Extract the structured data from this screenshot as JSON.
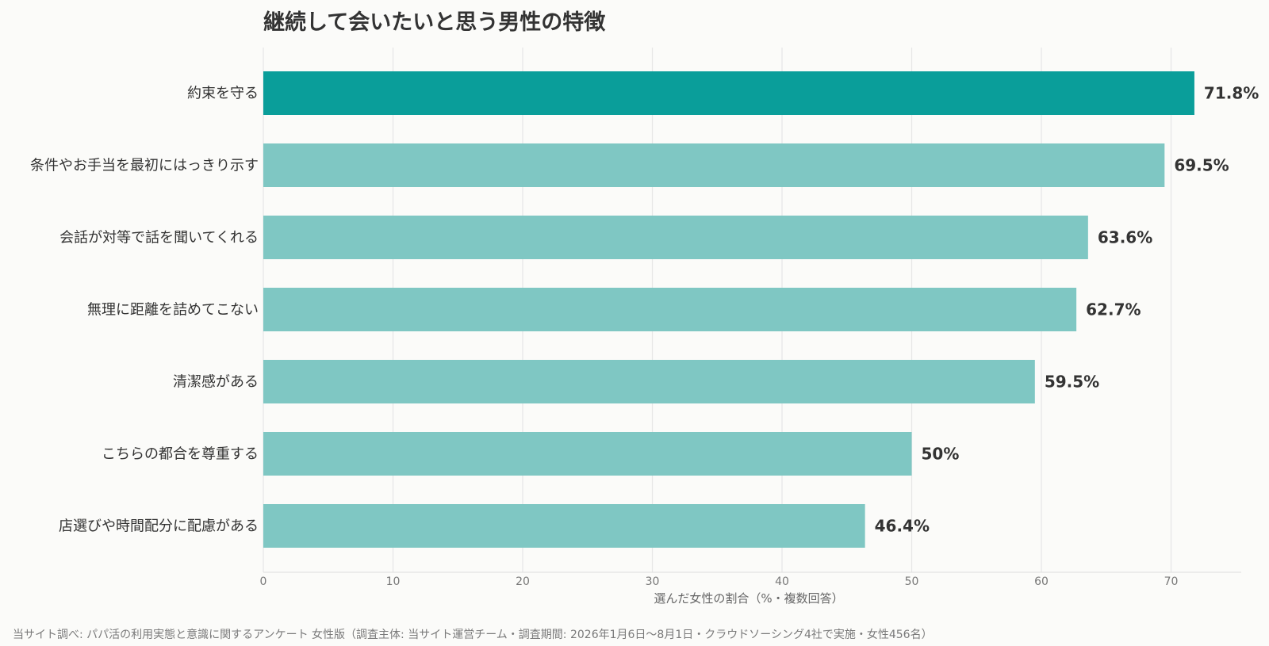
{
  "chart_data": {
    "type": "bar",
    "orientation": "horizontal",
    "title": "継続して会いたいと思う男性の特徴",
    "xlabel": "選んだ女性の割合（%・複数回答）",
    "ylabel": "",
    "xlim": [
      0,
      75
    ],
    "xticks": [
      0,
      10,
      20,
      30,
      40,
      50,
      60,
      70
    ],
    "grid": true,
    "categories": [
      "約束を守る",
      "条件やお手当を最初にはっきり示す",
      "会話が対等で話を聞いてくれる",
      "無理に距離を詰めてこない",
      "清潔感がある",
      "こちらの都合を尊重する",
      "店選びや時間配分に配慮がある"
    ],
    "values": [
      71.8,
      69.5,
      63.6,
      62.7,
      59.5,
      50,
      46.4
    ],
    "value_labels": [
      "71.8%",
      "69.5%",
      "63.6%",
      "62.7%",
      "59.5%",
      "50%",
      "46.4%"
    ],
    "highlight_index": 0,
    "colors": {
      "highlight": "#0a9e9a",
      "default": "#7fc7c3",
      "grid": "#e6e6e6",
      "axis_text": "#777777",
      "label_text": "#333333"
    }
  },
  "footer": {
    "source_note": "当サイト調べ: パパ活の利用実態と意識に関するアンケート 女性版（調査主体: 当サイト運営チーム・調査期間: 2026年1月6日〜8月1日・クラウドソーシング4社で実施・女性456名）"
  }
}
